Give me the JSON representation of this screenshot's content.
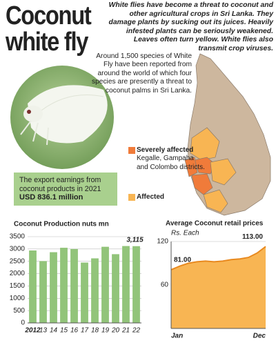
{
  "header": {
    "title_line1": "Coconut",
    "title_line2": "white fly",
    "intro": "White flies have become a threat to coconut and other agricultural crops in Sri Lanka. They damage plants by sucking out its juices. Heavily infested plants can be seriously weakened. Leaves often turn yellow. White flies also transmit crop viruses."
  },
  "species_note": "Around 1,500 species of White Fly have been reported from around the world of which four species are presently a threat to coconut palms in Sri Lanka.",
  "export": {
    "text": "The export earnings from coconut products in 2021",
    "amount": "USD 836.1 million"
  },
  "map_legend": {
    "severe_label": "Severely affected",
    "severe_text": "Kegalle, Gampaha and Colombo districts.",
    "affected_label": "Affected"
  },
  "chart_data": [
    {
      "type": "bar",
      "title": "Coconut Production nuts mn",
      "color": "#92c47a",
      "categories": [
        "2012",
        "13",
        "14",
        "15",
        "16",
        "17",
        "18",
        "19",
        "20",
        "21",
        "22"
      ],
      "values": [
        2940,
        2510,
        2870,
        3050,
        3000,
        2450,
        2620,
        3090,
        2790,
        3120,
        3115
      ],
      "value_labels": [
        null,
        null,
        null,
        null,
        null,
        null,
        null,
        null,
        null,
        null,
        "3,115"
      ],
      "ylim": [
        0,
        3500
      ],
      "yticks": [
        0,
        500,
        1000,
        1500,
        2000,
        2500,
        3000,
        3500
      ],
      "grid": true
    },
    {
      "type": "line",
      "title": "Average Coconut retail prices",
      "subtitle": "Rs. Each",
      "color": "#e8891f",
      "fill": "#f8b553",
      "categories": [
        "Jan",
        null,
        null,
        null,
        null,
        null,
        null,
        null,
        null,
        null,
        null,
        "Dec"
      ],
      "values": [
        81,
        86,
        90,
        92,
        93,
        92,
        93,
        95,
        96,
        98,
        104,
        113
      ],
      "value_labels": [
        "81.00",
        null,
        null,
        null,
        null,
        null,
        null,
        null,
        null,
        null,
        null,
        "113.00"
      ],
      "ylim": [
        0,
        120
      ],
      "yticks": [
        60,
        120
      ],
      "grid": true
    }
  ]
}
